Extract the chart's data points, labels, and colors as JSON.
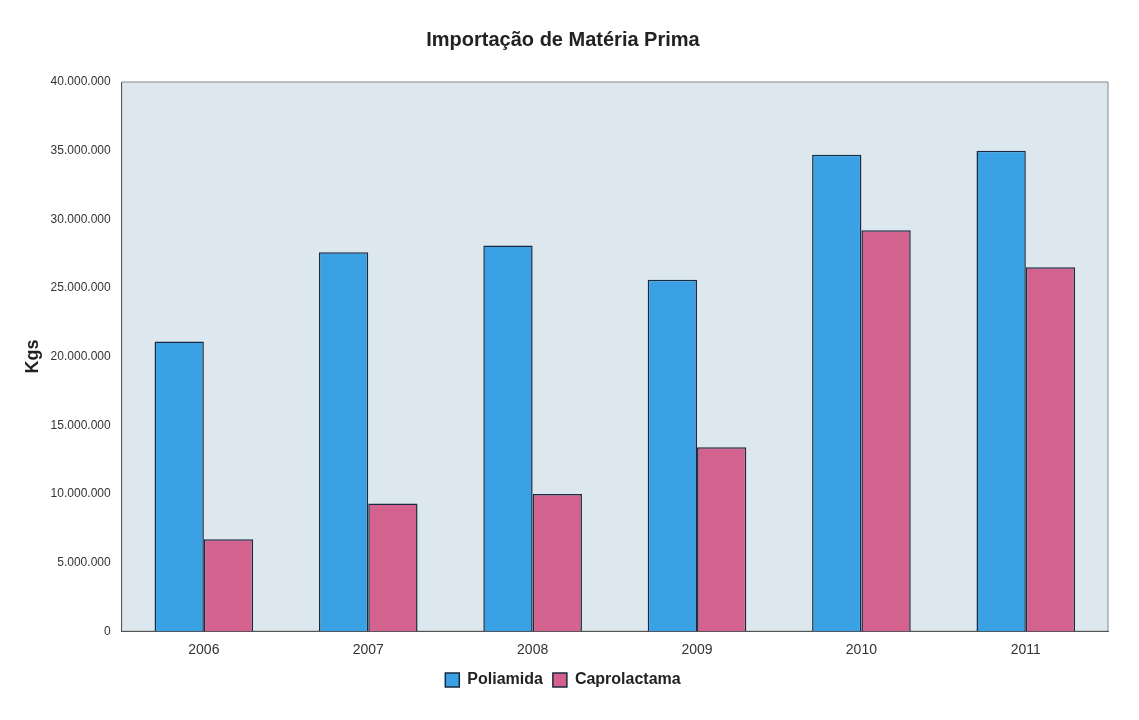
{
  "chart_data": {
    "type": "bar",
    "title": "Importação de Matéria Prima",
    "ylabel": "Kgs",
    "categories": [
      "2006",
      "2007",
      "2008",
      "2009",
      "2010",
      "2011"
    ],
    "series": [
      {
        "name": "Poliamida",
        "color": "#3aa2e4",
        "values": [
          21100000,
          27600000,
          28100000,
          25600000,
          34700000,
          35000000
        ]
      },
      {
        "name": "Caprolactama",
        "color": "#d4628e",
        "values": [
          6700000,
          9300000,
          10000000,
          13400000,
          29200000,
          26500000
        ]
      }
    ],
    "ylim": [
      0,
      40000000
    ],
    "yticks": [
      {
        "value": 0,
        "label": "0"
      },
      {
        "value": 5000000,
        "label": "5.000.000"
      },
      {
        "value": 10000000,
        "label": "10.000.000"
      },
      {
        "value": 15000000,
        "label": "15.000.000"
      },
      {
        "value": 20000000,
        "label": "20.000.000"
      },
      {
        "value": 25000000,
        "label": "25.000.000"
      },
      {
        "value": 30000000,
        "label": "30.000.000"
      },
      {
        "value": 35000000,
        "label": "35.000.000"
      },
      {
        "value": 40000000,
        "label": "40.000.000"
      }
    ],
    "grid": false,
    "legend": "bottom"
  }
}
